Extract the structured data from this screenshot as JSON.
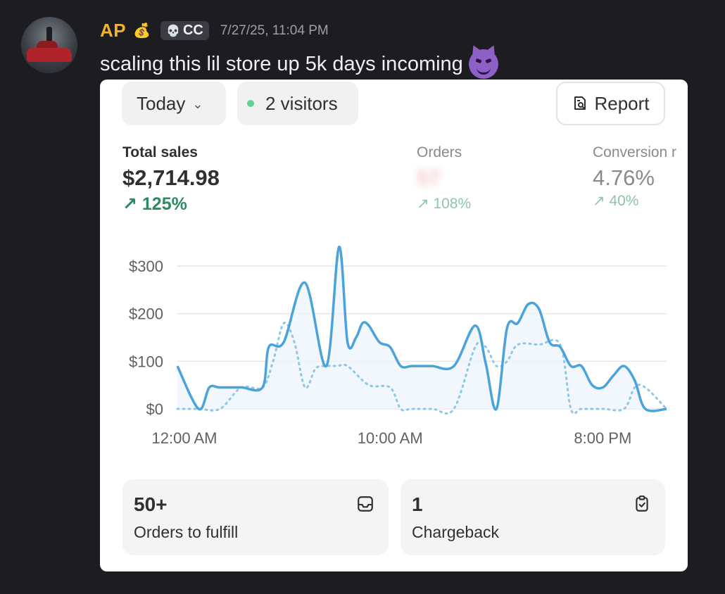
{
  "message": {
    "username": "AP",
    "username_emoji": "💰",
    "tag_icon": "💀",
    "tag_label": "CC",
    "timestamp": "7/27/25, 11:04 PM",
    "text": "scaling this lil store up 5k days incoming",
    "reaction_emoji": "smiling-imp"
  },
  "dashboard": {
    "date_filter": "Today",
    "visitors_label": "2 visitors",
    "report_label": "Report",
    "metrics": {
      "sales": {
        "label": "Total sales",
        "value": "$2,714.98",
        "delta": "125%",
        "delta_arrow": "↗"
      },
      "orders": {
        "label": "Orders",
        "value": "57",
        "delta": "108%",
        "delta_arrow": "↗"
      },
      "conversion": {
        "label": "Conversion r",
        "value": "4.76%",
        "delta": "40%",
        "delta_arrow": "↗"
      }
    },
    "tiles": {
      "fulfill": {
        "number": "50+",
        "label": "Orders to fulfill"
      },
      "chargeback": {
        "number": "1",
        "label": "Chargeback"
      }
    }
  },
  "chart_data": {
    "type": "line",
    "y_tick_labels": [
      "$0",
      "$100",
      "$200",
      "$300"
    ],
    "x_tick_labels": [
      "12:00 AM",
      "10:00 AM",
      "8:00 PM"
    ],
    "ylim": [
      0,
      340
    ],
    "xlim": [
      0,
      23
    ],
    "grid": true,
    "series": [
      {
        "style": "solid",
        "color": "#4ba3db",
        "x": [
          0,
          1,
          1.5,
          2,
          3,
          4,
          4.3,
          5,
          6,
          7,
          7.6,
          8,
          8.4,
          8.7,
          9,
          9.5,
          10,
          10.5,
          11,
          11.5,
          12,
          13,
          14,
          14.5,
          15,
          15.5,
          16,
          16.5,
          17,
          17.5,
          18,
          18.5,
          19,
          19.5,
          20,
          20.5,
          21,
          21.5,
          22,
          23
        ],
        "y": [
          90,
          0,
          45,
          45,
          45,
          45,
          130,
          140,
          265,
          90,
          340,
          140,
          150,
          180,
          175,
          140,
          130,
          90,
          90,
          90,
          90,
          90,
          175,
          95,
          0,
          170,
          180,
          220,
          210,
          140,
          130,
          90,
          90,
          50,
          45,
          70,
          90,
          60,
          0,
          0
        ]
      },
      {
        "style": "dotted",
        "color": "#8fc7e6",
        "x": [
          0,
          1,
          2,
          3,
          4,
          4.5,
          5,
          5.5,
          6,
          6.5,
          7,
          7.5,
          8,
          9,
          10,
          10.5,
          11,
          12,
          13,
          14,
          14.5,
          15,
          15.5,
          16,
          17,
          18,
          18.5,
          19,
          20,
          21,
          21.5,
          22,
          23
        ],
        "y": [
          0,
          0,
          0,
          45,
          45,
          100,
          180,
          140,
          45,
          85,
          90,
          90,
          90,
          50,
          45,
          0,
          0,
          0,
          0,
          130,
          130,
          90,
          100,
          135,
          135,
          135,
          0,
          0,
          0,
          0,
          45,
          45,
          0
        ]
      }
    ]
  }
}
